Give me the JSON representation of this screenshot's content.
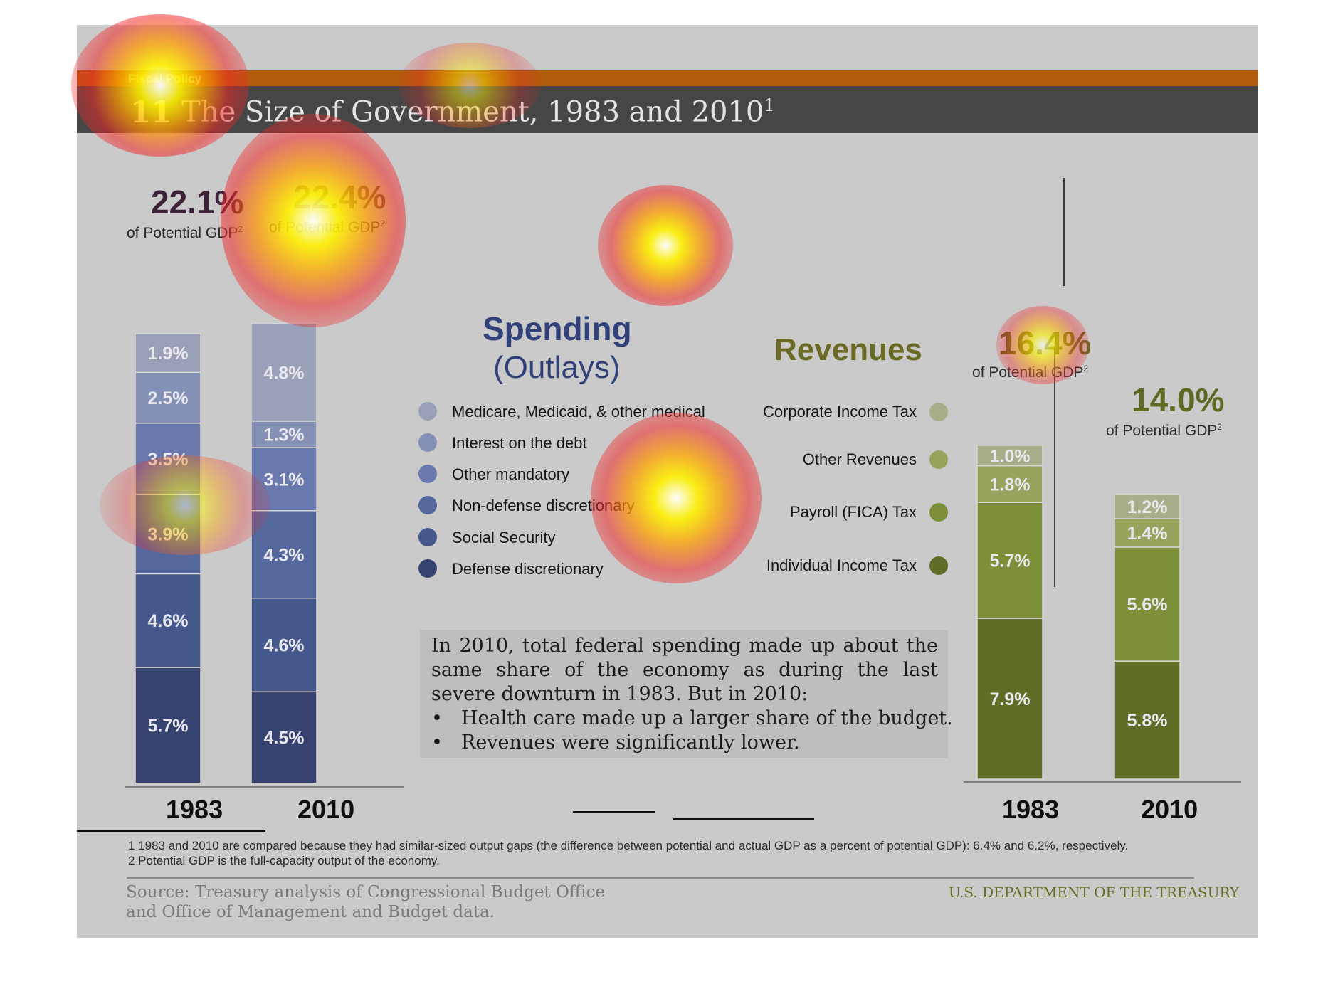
{
  "header": {
    "section_label": "Fiscal Policy",
    "chart_number": "11",
    "title": "The Size of Government, 1983 and 2010",
    "title_superscript": "1"
  },
  "spending": {
    "heading_line1": "Spending",
    "heading_line2": "(Outlays)",
    "totals": [
      {
        "year": "1983",
        "value": "22.1%",
        "sub": "of Potential GDP",
        "sup": "2"
      },
      {
        "year": "2010",
        "value": "22.4%",
        "sub": "of Potential GDP",
        "sup": "2"
      }
    ],
    "legend": [
      {
        "label": "Medicare, Medicaid, & other medical",
        "color": "#9aa0b8"
      },
      {
        "label": "Interest on the debt",
        "color": "#8590b6"
      },
      {
        "label": "Other mandatory",
        "color": "#6a79ad"
      },
      {
        "label": "Non-defense discretionary",
        "color": "#54689e"
      },
      {
        "label": "Social Security",
        "color": "#45588c"
      },
      {
        "label": "Defense discretionary",
        "color": "#364370"
      }
    ]
  },
  "revenues": {
    "heading": "Revenues",
    "totals": [
      {
        "year": "1983",
        "value": "16.4%",
        "sub": "of Potential GDP",
        "sup": "2"
      },
      {
        "year": "2010",
        "value": "14.0%",
        "sub": "of Potential GDP",
        "sup": "2"
      }
    ],
    "legend": [
      {
        "label": "Corporate Income Tax",
        "color": "#a8ae8a"
      },
      {
        "label": "Other Revenues",
        "color": "#97a45e"
      },
      {
        "label": "Payroll (FICA) Tax",
        "color": "#7c8f39"
      },
      {
        "label": "Individual Income Tax",
        "color": "#5f6e26"
      }
    ]
  },
  "textbox": {
    "paragraph": "In 2010, total federal spending made up about the same share of the economy as during the last severe downturn in 1983. But in 2010:",
    "bullets": [
      "Health care made up a larger share of the budget.",
      "Revenues were significantly lower."
    ],
    "bullet_glyph": "•"
  },
  "footnotes": [
    "1 1983 and 2010 are compared because they had similar-sized output gaps (the difference between potential and actual GDP as a percent of potential GDP): 6.4% and 6.2%, respectively.",
    "2 Potential GDP is the full-capacity output of the economy."
  ],
  "source_line1": "Source: Treasury analysis of Congressional Budget Office",
  "source_line2": "and Office of Management and Budget data.",
  "agency": "U.S. DEPARTMENT OF THE TREASURY",
  "chart_data": [
    {
      "type": "bar",
      "stacked": true,
      "title": "Spending (Outlays)",
      "unit": "% of Potential GDP",
      "categories": [
        "1983",
        "2010"
      ],
      "series": [
        {
          "name": "Defense discretionary",
          "values": [
            5.7,
            4.5
          ],
          "color": "#364370"
        },
        {
          "name": "Social Security",
          "values": [
            4.6,
            4.6
          ],
          "color": "#45588c"
        },
        {
          "name": "Non-defense discretionary",
          "values": [
            3.9,
            4.3
          ],
          "color": "#54689e"
        },
        {
          "name": "Other mandatory",
          "values": [
            3.5,
            3.1
          ],
          "color": "#6a79ad"
        },
        {
          "name": "Interest on the debt",
          "values": [
            2.5,
            1.3
          ],
          "color": "#8590b6"
        },
        {
          "name": "Medicare, Medicaid, & other medical",
          "values": [
            1.9,
            4.8
          ],
          "color": "#9aa0b8"
        }
      ],
      "labels": [
        [
          "5.7%",
          "4.5%"
        ],
        [
          "4.6%",
          "4.6%"
        ],
        [
          "3.9%",
          "4.3%"
        ],
        [
          "3.5%",
          "3.1%"
        ],
        [
          "2.5%",
          "1.3%"
        ],
        [
          "1.9%",
          "4.8%"
        ]
      ],
      "totals": [
        22.1,
        22.4
      ]
    },
    {
      "type": "bar",
      "stacked": true,
      "title": "Revenues",
      "unit": "% of Potential GDP",
      "categories": [
        "1983",
        "2010"
      ],
      "series": [
        {
          "name": "Individual Income Tax",
          "values": [
            7.9,
            5.8
          ],
          "color": "#5f6e26"
        },
        {
          "name": "Payroll (FICA) Tax",
          "values": [
            5.7,
            5.6
          ],
          "color": "#7c8f39"
        },
        {
          "name": "Other Revenues",
          "values": [
            1.8,
            1.4
          ],
          "color": "#97a45e"
        },
        {
          "name": "Corporate Income Tax",
          "values": [
            1.0,
            1.2
          ],
          "color": "#a8ae8a"
        }
      ],
      "labels": [
        [
          "7.9%",
          "5.8%"
        ],
        [
          "5.7%",
          "5.6%"
        ],
        [
          "1.8%",
          "1.4%"
        ],
        [
          "1.0%",
          "1.2%"
        ]
      ],
      "totals": [
        16.4,
        14.0
      ]
    }
  ]
}
